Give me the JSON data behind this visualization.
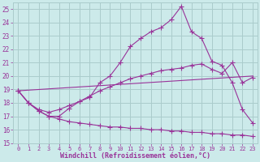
{
  "xlabel": "Windchill (Refroidissement éolien,°C)",
  "ylabel": "",
  "background_color": "#cceaea",
  "grid_color": "#aacccc",
  "line_color": "#993399",
  "xlim": [
    -0.5,
    23.5
  ],
  "ylim": [
    15,
    25.5
  ],
  "yticks": [
    15,
    16,
    17,
    18,
    19,
    20,
    21,
    22,
    23,
    24,
    25
  ],
  "xticks": [
    0,
    1,
    2,
    3,
    4,
    5,
    6,
    7,
    8,
    9,
    10,
    11,
    12,
    13,
    14,
    15,
    16,
    17,
    18,
    19,
    20,
    21,
    22,
    23
  ],
  "series1_x": [
    0,
    1,
    2,
    3,
    4,
    5,
    6,
    7,
    8,
    9,
    10,
    11,
    12,
    13,
    14,
    15,
    16,
    17,
    18,
    19,
    20,
    21,
    22,
    23
  ],
  "series1_y": [
    18.9,
    18.0,
    17.4,
    17.0,
    17.0,
    17.6,
    18.1,
    18.4,
    19.5,
    20.0,
    21.0,
    22.2,
    22.8,
    23.3,
    23.6,
    24.2,
    25.2,
    23.3,
    22.8,
    21.1,
    20.8,
    19.5,
    17.5,
    16.5
  ],
  "series2_x": [
    0,
    1,
    2,
    3,
    4,
    5,
    6,
    7,
    8,
    9,
    10,
    11,
    12,
    13,
    14,
    15,
    16,
    17,
    18,
    19,
    20,
    21,
    22,
    23
  ],
  "series2_y": [
    18.9,
    18.0,
    17.5,
    17.3,
    17.5,
    17.8,
    18.1,
    18.5,
    18.9,
    19.2,
    19.5,
    19.8,
    20.0,
    20.2,
    20.4,
    20.5,
    20.6,
    20.8,
    20.9,
    20.5,
    20.2,
    21.0,
    19.5,
    19.9
  ],
  "series3_x": [
    0,
    1,
    2,
    3,
    4,
    5,
    6,
    7,
    8,
    9,
    10,
    11,
    12,
    13,
    14,
    15,
    16,
    17,
    18,
    19,
    20,
    21,
    22,
    23
  ],
  "series3_y": [
    18.9,
    18.0,
    17.4,
    17.0,
    16.8,
    16.6,
    16.5,
    16.4,
    16.3,
    16.2,
    16.2,
    16.1,
    16.1,
    16.0,
    16.0,
    15.9,
    15.9,
    15.8,
    15.8,
    15.7,
    15.7,
    15.6,
    15.6,
    15.5
  ],
  "series4_x": [
    0,
    23
  ],
  "series4_y": [
    18.9,
    20.0
  ]
}
